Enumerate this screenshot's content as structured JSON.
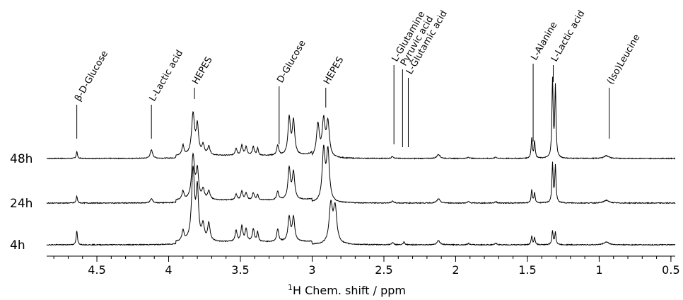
{
  "chart_data": {
    "type": "line",
    "title": "",
    "xlabel": "Chem. shift / ppm",
    "xlabel_superscript": "1",
    "xlabel_nucleus": "H",
    "xlim": [
      4.85,
      0.47
    ],
    "x_reversed": true,
    "x_ticks": [
      "4.5",
      "4",
      "3.5",
      "3",
      "2.5",
      "2",
      "1.5",
      "1",
      "0.5"
    ],
    "x_tick_values": [
      4.5,
      4.0,
      3.5,
      3.0,
      2.5,
      2.0,
      1.5,
      1.0,
      0.5
    ],
    "series": [
      {
        "name": "48h"
      },
      {
        "name": "24h"
      },
      {
        "name": "4h"
      }
    ],
    "peaks": [
      {
        "ppm": 4.64,
        "heights": [
          10,
          10,
          20
        ],
        "width": 0.005
      },
      {
        "ppm": 4.12,
        "heights": [
          12,
          6,
          0
        ],
        "width": 0.01
      },
      {
        "ppm": 3.9,
        "heights": [
          14,
          12,
          15
        ],
        "width": 0.008
      },
      {
        "ppm": 3.83,
        "heights": [
          58,
          62,
          100
        ],
        "width": 0.012
      },
      {
        "ppm": 3.8,
        "heights": [
          40,
          40,
          70
        ],
        "width": 0.01
      },
      {
        "ppm": 3.76,
        "heights": [
          14,
          14,
          22
        ],
        "width": 0.01
      },
      {
        "ppm": 3.72,
        "heights": [
          12,
          12,
          25
        ],
        "width": 0.01
      },
      {
        "ppm": 3.53,
        "heights": [
          10,
          8,
          16
        ],
        "width": 0.008
      },
      {
        "ppm": 3.49,
        "heights": [
          14,
          12,
          22
        ],
        "width": 0.008
      },
      {
        "ppm": 3.46,
        "heights": [
          12,
          10,
          18
        ],
        "width": 0.008
      },
      {
        "ppm": 3.41,
        "heights": [
          12,
          10,
          18
        ],
        "width": 0.008
      },
      {
        "ppm": 3.38,
        "heights": [
          10,
          8,
          14
        ],
        "width": 0.006
      },
      {
        "ppm": 3.24,
        "heights": [
          14,
          12,
          18
        ],
        "width": 0.008
      },
      {
        "ppm": 3.16,
        "heights": [
          52,
          44,
          34
        ],
        "width": 0.01
      },
      {
        "ppm": 3.13,
        "heights": [
          48,
          38,
          34
        ],
        "width": 0.01
      },
      {
        "ppm": 2.96,
        "heights": [
          46,
          0,
          0
        ],
        "width": 0.012
      },
      {
        "ppm": 2.92,
        "heights": [
          50,
          72,
          0
        ],
        "width": 0.012
      },
      {
        "ppm": 2.89,
        "heights": [
          48,
          70,
          0
        ],
        "width": 0.012
      },
      {
        "ppm": 2.87,
        "heights": [
          0,
          0,
          54
        ],
        "width": 0.014
      },
      {
        "ppm": 2.84,
        "heights": [
          0,
          0,
          50
        ],
        "width": 0.014
      },
      {
        "ppm": 2.44,
        "heights": [
          3,
          3,
          3
        ],
        "width": 0.008
      },
      {
        "ppm": 2.36,
        "heights": [
          0,
          0,
          4
        ],
        "width": 0.005
      },
      {
        "ppm": 2.12,
        "heights": [
          6,
          6,
          6
        ],
        "width": 0.012
      },
      {
        "ppm": 1.91,
        "heights": [
          2,
          2,
          2
        ],
        "width": 0.008
      },
      {
        "ppm": 1.72,
        "heights": [
          2,
          2,
          2
        ],
        "width": 0.008
      },
      {
        "ppm": 1.47,
        "heights": [
          28,
          18,
          12
        ],
        "width": 0.005
      },
      {
        "ppm": 1.45,
        "heights": [
          24,
          14,
          10
        ],
        "width": 0.005
      },
      {
        "ppm": 1.325,
        "heights": [
          110,
          55,
          20
        ],
        "width": 0.005
      },
      {
        "ppm": 1.305,
        "heights": [
          100,
          52,
          18
        ],
        "width": 0.005
      },
      {
        "ppm": 0.95,
        "heights": [
          4,
          4,
          4
        ],
        "width": 0.02
      }
    ],
    "annotations": [
      {
        "text": "β-D-Glucose",
        "ppm": 4.64
      },
      {
        "text": "L-Lactic acid",
        "ppm": 4.12
      },
      {
        "text": "HEPES",
        "ppm": 3.82
      },
      {
        "text": "D-Glucose",
        "ppm": 3.23
      },
      {
        "text": "HEPES",
        "ppm": 2.905
      },
      {
        "text": "L-Glutamine",
        "ppm": 2.43
      },
      {
        "text": "Pyruvic acid",
        "ppm": 2.37
      },
      {
        "text": "L-Glutamic acid",
        "ppm": 2.33
      },
      {
        "text": "L-Alanine",
        "ppm": 1.46
      },
      {
        "text": "L-Lactic acid",
        "ppm": 1.32
      },
      {
        "text": "(Iso)Leucine",
        "ppm": 0.93
      }
    ],
    "grid": false,
    "legend": "none"
  }
}
